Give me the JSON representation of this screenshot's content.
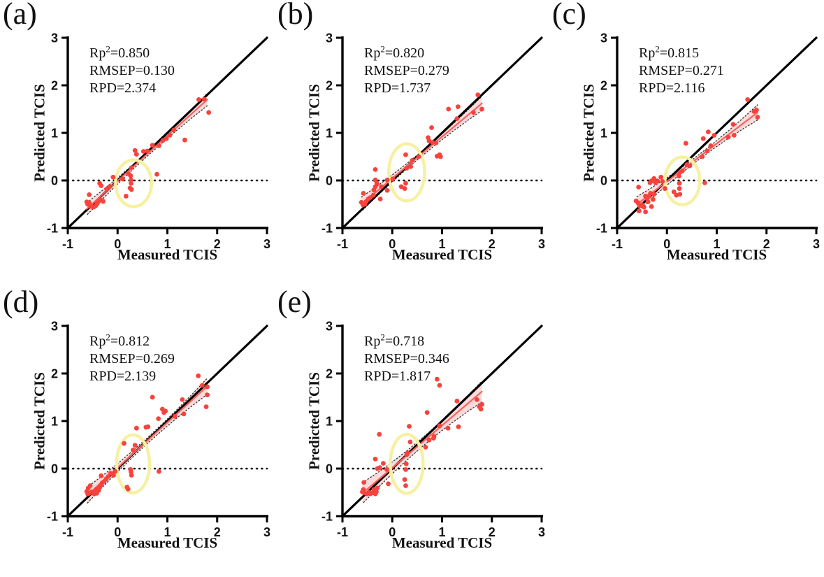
{
  "figure": {
    "background": "#ffffff",
    "colors": {
      "point": "#f8423c",
      "regression_line": "#f9615c",
      "confidence_band": "#fbdadb",
      "band_border": "#333333",
      "highlight_ellipse": "#f7f0a2",
      "axis": "#000000",
      "text": "#111111"
    }
  },
  "chart_data": [
    {
      "type": "scatter",
      "panel_label": "(a)",
      "stats": {
        "rp2_prefix": "Rp",
        "rp2_sup": "2",
        "rp2_rest": "=0.850",
        "rmsep": "RMSEP=0.130",
        "rpd": "RPD=2.374"
      },
      "xlabel": "Measured TCIS",
      "ylabel": "Predicted TCIS",
      "xlim": [
        -1,
        3
      ],
      "ylim": [
        -1,
        3
      ],
      "xticks": [
        -1,
        0,
        1,
        2,
        3
      ],
      "yticks": [
        -1,
        0,
        1,
        2,
        3
      ],
      "identity_line": {
        "from": [
          -1,
          -1
        ],
        "to": [
          3,
          3
        ]
      },
      "zero_line_y": 0,
      "regression": {
        "from": [
          -0.62,
          -0.6
        ],
        "to": [
          1.8,
          1.7
        ],
        "halfwidth_mid": 0.045,
        "halfwidth_end": 0.13
      },
      "highlight_ellipse": {
        "cx": 0.32,
        "cy": -0.06,
        "rx": 0.36,
        "ry": 0.49
      },
      "points": [
        [
          -0.62,
          -0.45
        ],
        [
          -0.6,
          -0.5
        ],
        [
          -0.57,
          -0.47
        ],
        [
          -0.55,
          -0.53
        ],
        [
          -0.52,
          -0.55
        ],
        [
          -0.48,
          -0.56
        ],
        [
          -0.44,
          -0.53
        ],
        [
          -0.41,
          -0.49
        ],
        [
          -0.38,
          -0.44
        ],
        [
          -0.34,
          -0.41
        ],
        [
          -0.29,
          -0.44
        ],
        [
          -0.57,
          -0.3
        ],
        [
          -0.36,
          -0.06
        ],
        [
          -0.33,
          -0.11
        ],
        [
          -0.22,
          -0.18
        ],
        [
          -0.16,
          -0.13
        ],
        [
          -0.09,
          0.07
        ],
        [
          0.1,
          0.03
        ],
        [
          0.22,
          0.14
        ],
        [
          0.28,
          0.27
        ],
        [
          0.26,
          0.1
        ],
        [
          0.27,
          0.01
        ],
        [
          0.27,
          -0.06
        ],
        [
          0.25,
          -0.16
        ],
        [
          0.28,
          -0.19
        ],
        [
          0.17,
          -0.33
        ],
        [
          0.79,
          0.13
        ],
        [
          0.35,
          0.63
        ],
        [
          0.38,
          0.55
        ],
        [
          0.52,
          0.61
        ],
        [
          0.6,
          0.62
        ],
        [
          0.7,
          0.74
        ],
        [
          0.83,
          0.73
        ],
        [
          0.91,
          0.84
        ],
        [
          0.98,
          0.88
        ],
        [
          1.05,
          0.95
        ],
        [
          1.13,
          1.06
        ],
        [
          1.35,
          0.85
        ],
        [
          1.63,
          1.7
        ],
        [
          1.74,
          1.71
        ],
        [
          1.83,
          1.43
        ]
      ]
    },
    {
      "type": "scatter",
      "panel_label": "(b)",
      "stats": {
        "rp2_prefix": "Rp",
        "rp2_sup": "2",
        "rp2_rest": "=0.820",
        "rmsep": "RMSEP=0.279",
        "rpd": "RPD=1.737"
      },
      "xlabel": "Measured TCIS",
      "ylabel": "Predicted TCIS",
      "xlim": [
        -1,
        3
      ],
      "ylim": [
        -1,
        3
      ],
      "xticks": [
        -1,
        0,
        1,
        2,
        3
      ],
      "yticks": [
        -1,
        0,
        1,
        2,
        3
      ],
      "identity_line": {
        "from": [
          -1,
          -1
        ],
        "to": [
          3,
          3
        ]
      },
      "zero_line_y": 0,
      "regression": {
        "from": [
          -0.62,
          -0.5
        ],
        "to": [
          1.8,
          1.62
        ],
        "halfwidth_mid": 0.05,
        "halfwidth_end": 0.15
      },
      "highlight_ellipse": {
        "cx": 0.29,
        "cy": 0.17,
        "rx": 0.36,
        "ry": 0.6
      },
      "points": [
        [
          -0.62,
          -0.46
        ],
        [
          -0.59,
          -0.51
        ],
        [
          -0.55,
          -0.5
        ],
        [
          -0.52,
          -0.44
        ],
        [
          -0.48,
          -0.39
        ],
        [
          -0.44,
          -0.36
        ],
        [
          -0.38,
          -0.31
        ],
        [
          -0.58,
          -0.27
        ],
        [
          -0.37,
          -0.2
        ],
        [
          -0.34,
          -0.13
        ],
        [
          -0.31,
          -0.06
        ],
        [
          -0.34,
          0.01
        ],
        [
          -0.34,
          0.23
        ],
        [
          -0.24,
          -0.39
        ],
        [
          -0.22,
          -0.13
        ],
        [
          -0.1,
          -0.21
        ],
        [
          -0.1,
          0.01
        ],
        [
          0.01,
          0.03
        ],
        [
          0.18,
          -0.13
        ],
        [
          0.25,
          -0.17
        ],
        [
          0.27,
          -0.06
        ],
        [
          0.27,
          0.54
        ],
        [
          0.29,
          0.26
        ],
        [
          0.37,
          0.29
        ],
        [
          0.4,
          0.42
        ],
        [
          0.53,
          0.5
        ],
        [
          0.72,
          0.9
        ],
        [
          0.74,
          0.83
        ],
        [
          0.79,
          1.11
        ],
        [
          0.81,
          0.8
        ],
        [
          0.88,
          0.79
        ],
        [
          0.9,
          0.51
        ],
        [
          0.95,
          0.54
        ],
        [
          0.97,
          0.5
        ],
        [
          1.13,
          1.5
        ],
        [
          1.3,
          1.3
        ],
        [
          1.32,
          1.55
        ],
        [
          1.63,
          1.43
        ],
        [
          1.72,
          1.8
        ],
        [
          1.8,
          1.5
        ]
      ]
    },
    {
      "type": "scatter",
      "panel_label": "(c)",
      "stats": {
        "rp2_prefix": "Rp",
        "rp2_sup": "2",
        "rp2_rest": "=0.815",
        "rmsep": "RMSEP=0.271",
        "rpd": "RPD=2.116"
      },
      "xlabel": "Measured TCIS",
      "ylabel": "Predicted TCIS",
      "xlim": [
        -1,
        3
      ],
      "ylim": [
        -1,
        3
      ],
      "xticks": [
        -1,
        0,
        1,
        2,
        3
      ],
      "yticks": [
        -1,
        0,
        1,
        2,
        3
      ],
      "identity_line": {
        "from": [
          -1,
          -1
        ],
        "to": [
          3,
          3
        ]
      },
      "zero_line_y": 0,
      "regression": {
        "from": [
          -0.6,
          -0.5
        ],
        "to": [
          1.82,
          1.43
        ],
        "halfwidth_mid": 0.05,
        "halfwidth_end": 0.16
      },
      "highlight_ellipse": {
        "cx": 0.31,
        "cy": -0.01,
        "rx": 0.35,
        "ry": 0.5
      },
      "points": [
        [
          -0.57,
          -0.14
        ],
        [
          -0.62,
          -0.43
        ],
        [
          -0.58,
          -0.47
        ],
        [
          -0.55,
          -0.53
        ],
        [
          -0.56,
          -0.64
        ],
        [
          -0.5,
          -0.51
        ],
        [
          -0.46,
          -0.56
        ],
        [
          -0.43,
          -0.33
        ],
        [
          -0.4,
          -0.38
        ],
        [
          -0.38,
          -0.45
        ],
        [
          -0.36,
          -0.33
        ],
        [
          -0.33,
          -0.27
        ],
        [
          -0.31,
          -0.55
        ],
        [
          -0.43,
          -0.66
        ],
        [
          -0.28,
          -0.4
        ],
        [
          -0.26,
          -0.29
        ],
        [
          -0.34,
          -0.05
        ],
        [
          -0.31,
          -0.01
        ],
        [
          -0.26,
          0.04
        ],
        [
          -0.23,
          -0.05
        ],
        [
          -0.19,
          -0.01
        ],
        [
          -0.12,
          0.07
        ],
        [
          -0.09,
          -0.02
        ],
        [
          -0.04,
          -0.17
        ],
        [
          0.14,
          -0.24
        ],
        [
          0.19,
          -0.31
        ],
        [
          0.26,
          -0.29
        ],
        [
          0.25,
          -0.17
        ],
        [
          0.25,
          -0.06
        ],
        [
          0.24,
          0.09
        ],
        [
          0.26,
          0.17
        ],
        [
          0.31,
          0.2
        ],
        [
          0.4,
          0.33
        ],
        [
          0.46,
          0.31
        ],
        [
          0.38,
          0.78
        ],
        [
          0.76,
          -0.05
        ],
        [
          0.71,
          0.5
        ],
        [
          0.81,
          0.62
        ],
        [
          0.88,
          0.73
        ],
        [
          0.73,
          0.88
        ],
        [
          0.83,
          1.02
        ],
        [
          0.95,
          0.95
        ],
        [
          1.23,
          0.91
        ],
        [
          1.33,
          1.18
        ],
        [
          1.35,
          0.95
        ],
        [
          1.62,
          1.7
        ],
        [
          1.75,
          1.45
        ],
        [
          1.8,
          1.48
        ],
        [
          1.82,
          1.33
        ]
      ]
    },
    {
      "type": "scatter",
      "panel_label": "(d)",
      "stats": {
        "rp2_prefix": "Rp",
        "rp2_sup": "2",
        "rp2_rest": "=0.812",
        "rmsep": "RMSEP=0.269",
        "rpd": "RPD=2.139"
      },
      "xlabel": "Measured TCIS",
      "ylabel": "Predicted TCIS",
      "xlim": [
        -1,
        3
      ],
      "ylim": [
        -1,
        3
      ],
      "xticks": [
        -1,
        0,
        1,
        2,
        3
      ],
      "yticks": [
        -1,
        0,
        1,
        2,
        3
      ],
      "identity_line": {
        "from": [
          -1,
          -1
        ],
        "to": [
          3,
          3
        ]
      },
      "zero_line_y": 0,
      "regression": {
        "from": [
          -0.62,
          -0.57
        ],
        "to": [
          1.8,
          1.73
        ],
        "halfwidth_mid": 0.06,
        "halfwidth_end": 0.17
      },
      "highlight_ellipse": {
        "cx": 0.31,
        "cy": 0.1,
        "rx": 0.33,
        "ry": 0.61
      },
      "points": [
        [
          -0.62,
          -0.48
        ],
        [
          -0.59,
          -0.41
        ],
        [
          -0.6,
          -0.53
        ],
        [
          -0.57,
          -0.52
        ],
        [
          -0.55,
          -0.36
        ],
        [
          -0.52,
          -0.49
        ],
        [
          -0.47,
          -0.53
        ],
        [
          -0.45,
          -0.48
        ],
        [
          -0.42,
          -0.43
        ],
        [
          -0.42,
          -0.52
        ],
        [
          -0.38,
          -0.46
        ],
        [
          -0.36,
          -0.39
        ],
        [
          -0.34,
          -0.35
        ],
        [
          -0.31,
          -0.3
        ],
        [
          -0.27,
          -0.27
        ],
        [
          -0.33,
          -0.15
        ],
        [
          -0.23,
          -0.22
        ],
        [
          -0.19,
          -0.17
        ],
        [
          -0.14,
          -0.1
        ],
        [
          -0.08,
          -0.14
        ],
        [
          -0.05,
          -0.06
        ],
        [
          0.13,
          0.53
        ],
        [
          0.19,
          -0.39
        ],
        [
          0.21,
          -0.43
        ],
        [
          0.26,
          -0.02
        ],
        [
          0.27,
          -0.07
        ],
        [
          0.28,
          -0.14
        ],
        [
          0.31,
          0.39
        ],
        [
          0.35,
          0.49
        ],
        [
          0.38,
          0.85
        ],
        [
          0.57,
          0.87
        ],
        [
          0.61,
          0.88
        ],
        [
          0.83,
          -0.06
        ],
        [
          0.7,
          1.5
        ],
        [
          0.82,
          1.05
        ],
        [
          0.9,
          1.25
        ],
        [
          0.93,
          1.18
        ],
        [
          0.96,
          1.21
        ],
        [
          1.15,
          1.1
        ],
        [
          1.3,
          1.45
        ],
        [
          1.33,
          1.15
        ],
        [
          1.62,
          1.95
        ],
        [
          1.7,
          1.75
        ],
        [
          1.78,
          1.3
        ],
        [
          1.8,
          1.55
        ],
        [
          1.8,
          1.72
        ]
      ]
    },
    {
      "type": "scatter",
      "panel_label": "(e)",
      "stats": {
        "rp2_prefix": "Rp",
        "rp2_sup": "2",
        "rp2_rest": "=0.718",
        "rmsep": "RMSEP=0.346",
        "rpd": "RPD=1.817"
      },
      "xlabel": "Measured TCIS",
      "ylabel": "Predicted TCIS",
      "xlim": [
        -1,
        3
      ],
      "ylim": [
        -1,
        3
      ],
      "xticks": [
        -1,
        0,
        1,
        2,
        3
      ],
      "yticks": [
        -1,
        0,
        1,
        2,
        3
      ],
      "identity_line": {
        "from": [
          -1,
          -1
        ],
        "to": [
          3,
          3
        ]
      },
      "zero_line_y": 0,
      "regression": {
        "from": [
          -0.6,
          -0.52
        ],
        "to": [
          1.8,
          1.62
        ],
        "halfwidth_mid": 0.09,
        "halfwidth_end": 0.22
      },
      "highlight_ellipse": {
        "cx": 0.29,
        "cy": 0.1,
        "rx": 0.33,
        "ry": 0.62
      },
      "points": [
        [
          -0.6,
          -0.49
        ],
        [
          -0.58,
          -0.44
        ],
        [
          -0.57,
          -0.29
        ],
        [
          -0.56,
          -0.51
        ],
        [
          -0.51,
          -0.53
        ],
        [
          -0.46,
          -0.5
        ],
        [
          -0.44,
          -0.53
        ],
        [
          -0.39,
          -0.51
        ],
        [
          -0.37,
          -0.44
        ],
        [
          -0.34,
          -0.53
        ],
        [
          -0.32,
          -0.49
        ],
        [
          -0.3,
          -0.41
        ],
        [
          -0.34,
          0.2
        ],
        [
          -0.26,
          0.72
        ],
        [
          -0.3,
          0.0
        ],
        [
          -0.25,
          0.02
        ],
        [
          -0.18,
          0.11
        ],
        [
          -0.08,
          -0.32
        ],
        [
          -0.11,
          -0.02
        ],
        [
          0.27,
          -0.02
        ],
        [
          0.25,
          -0.23
        ],
        [
          0.27,
          -0.36
        ],
        [
          0.28,
          0.1
        ],
        [
          0.29,
          0.29
        ],
        [
          0.31,
          0.33
        ],
        [
          0.34,
          0.89
        ],
        [
          0.36,
          0.56
        ],
        [
          0.67,
          0.45
        ],
        [
          0.74,
          0.6
        ],
        [
          0.83,
          0.64
        ],
        [
          0.84,
          0.68
        ],
        [
          1.12,
          0.85
        ],
        [
          1.33,
          0.88
        ],
        [
          0.9,
          1.88
        ],
        [
          0.95,
          1.75
        ],
        [
          0.7,
          1.18
        ],
        [
          1.3,
          1.42
        ],
        [
          0.95,
          0.9
        ],
        [
          1.7,
          1.45
        ],
        [
          1.75,
          1.3
        ],
        [
          1.78,
          1.25
        ],
        [
          1.8,
          1.35
        ]
      ]
    }
  ]
}
